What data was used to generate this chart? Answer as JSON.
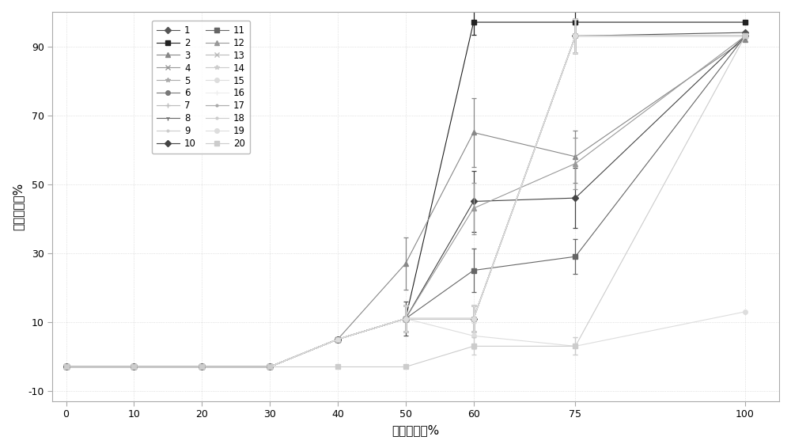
{
  "x_values": [
    0,
    10,
    20,
    30,
    40,
    50,
    60,
    75,
    100
  ],
  "ylabel": "累积回收率%",
  "xlabel": "甲醇的浓度%",
  "xlim": [
    -2,
    105
  ],
  "ylim": [
    -13,
    100
  ],
  "yticks": [
    -10,
    10,
    30,
    50,
    70,
    90
  ],
  "xticks": [
    0,
    10,
    20,
    30,
    40,
    50,
    60,
    75,
    100
  ],
  "series": [
    {
      "label": "1",
      "marker": "D",
      "color": "#555555",
      "ms": 4,
      "lw": 0.8,
      "values": [
        -3,
        -3,
        -3,
        -3,
        5,
        11,
        11,
        93,
        94
      ],
      "eb_idx": [
        5,
        6,
        7
      ],
      "eb_err": [
        2.0,
        1.5,
        2.0
      ]
    },
    {
      "label": "2",
      "marker": "s",
      "color": "#222222",
      "ms": 5,
      "lw": 0.8,
      "values": [
        -3,
        -3,
        -3,
        -3,
        5,
        11,
        97,
        97,
        97
      ],
      "eb_idx": [
        5,
        6,
        7
      ],
      "eb_err": [
        1.5,
        1.5,
        1.5
      ]
    },
    {
      "label": "3",
      "marker": "^",
      "color": "#888888",
      "ms": 4,
      "lw": 0.8,
      "values": [
        -3,
        -3,
        -3,
        -3,
        5,
        27,
        65,
        58,
        92
      ],
      "eb_idx": [
        5,
        6,
        7
      ],
      "eb_err": [
        3.0,
        4.0,
        3.0
      ]
    },
    {
      "label": "4",
      "marker": "x",
      "color": "#999999",
      "ms": 4,
      "lw": 0.8,
      "values": [
        -3,
        -3,
        -3,
        -3,
        5,
        11,
        11,
        93,
        93
      ],
      "eb_idx": [
        5,
        6,
        7
      ],
      "eb_err": [
        1.5,
        1.5,
        2.0
      ]
    },
    {
      "label": "5",
      "marker": "*",
      "color": "#aaaaaa",
      "ms": 4,
      "lw": 0.8,
      "values": [
        -3,
        -3,
        -3,
        -3,
        5,
        11,
        11,
        93,
        93
      ],
      "eb_idx": [
        5,
        6,
        7
      ],
      "eb_err": [
        1.5,
        1.5,
        2.0
      ]
    },
    {
      "label": "6",
      "marker": "o",
      "color": "#777777",
      "ms": 4,
      "lw": 0.8,
      "values": [
        -3,
        -3,
        -3,
        -3,
        5,
        11,
        11,
        93,
        93
      ],
      "eb_idx": [
        5,
        6,
        7
      ],
      "eb_err": [
        1.5,
        1.5,
        2.0
      ]
    },
    {
      "label": "7",
      "marker": "+",
      "color": "#bbbbbb",
      "ms": 4,
      "lw": 0.8,
      "values": [
        -3,
        -3,
        -3,
        -3,
        5,
        11,
        11,
        93,
        93
      ],
      "eb_idx": [
        5,
        6,
        7
      ],
      "eb_err": [
        1.5,
        1.5,
        2.0
      ]
    },
    {
      "label": "8",
      "marker": "1",
      "color": "#666666",
      "ms": 4,
      "lw": 0.8,
      "values": [
        -3,
        -3,
        -3,
        -3,
        5,
        11,
        11,
        93,
        93
      ],
      "eb_idx": [
        5,
        6,
        7
      ],
      "eb_err": [
        1.5,
        1.5,
        2.0
      ]
    },
    {
      "label": "9",
      "marker": ".",
      "color": "#cccccc",
      "ms": 4,
      "lw": 0.8,
      "values": [
        -3,
        -3,
        -3,
        -3,
        5,
        11,
        11,
        93,
        93
      ],
      "eb_idx": [
        5,
        6,
        7
      ],
      "eb_err": [
        1.5,
        1.5,
        2.0
      ]
    },
    {
      "label": "10",
      "marker": "D",
      "color": "#444444",
      "ms": 4,
      "lw": 0.8,
      "values": [
        -3,
        -3,
        -3,
        -3,
        5,
        11,
        45,
        46,
        93
      ],
      "eb_idx": [
        5,
        6,
        7
      ],
      "eb_err": [
        1.5,
        3.5,
        3.5
      ]
    },
    {
      "label": "11",
      "marker": "s",
      "color": "#666666",
      "ms": 4,
      "lw": 0.8,
      "values": [
        -3,
        -3,
        -3,
        -3,
        5,
        11,
        25,
        29,
        93
      ],
      "eb_idx": [
        5,
        6,
        7
      ],
      "eb_err": [
        1.5,
        2.5,
        2.0
      ]
    },
    {
      "label": "12",
      "marker": "^",
      "color": "#999999",
      "ms": 4,
      "lw": 0.8,
      "values": [
        -3,
        -3,
        -3,
        -3,
        5,
        11,
        43,
        56,
        93
      ],
      "eb_idx": [
        5,
        6,
        7
      ],
      "eb_err": [
        1.5,
        3.0,
        3.0
      ]
    },
    {
      "label": "13",
      "marker": "x",
      "color": "#bbbbbb",
      "ms": 4,
      "lw": 0.8,
      "values": [
        -3,
        -3,
        -3,
        -3,
        5,
        11,
        11,
        93,
        93
      ],
      "eb_idx": [
        5,
        6,
        7
      ],
      "eb_err": [
        1.5,
        1.5,
        2.0
      ]
    },
    {
      "label": "14",
      "marker": "*",
      "color": "#cccccc",
      "ms": 4,
      "lw": 0.8,
      "values": [
        -3,
        -3,
        -3,
        -3,
        5,
        11,
        11,
        93,
        93
      ],
      "eb_idx": [
        5,
        6,
        7
      ],
      "eb_err": [
        1.5,
        1.5,
        2.0
      ]
    },
    {
      "label": "15",
      "marker": "o",
      "color": "#dddddd",
      "ms": 4,
      "lw": 0.8,
      "values": [
        -3,
        -3,
        -3,
        -3,
        5,
        11,
        6,
        3,
        13
      ],
      "eb_idx": [
        5,
        6,
        7
      ],
      "eb_err": [
        1.5,
        1.5,
        1.0
      ]
    },
    {
      "label": "16",
      "marker": "+",
      "color": "#eeeeee",
      "ms": 4,
      "lw": 0.8,
      "values": [
        -3,
        -3,
        -3,
        -3,
        5,
        11,
        11,
        93,
        93
      ],
      "eb_idx": [
        5,
        6,
        7
      ],
      "eb_err": [
        1.5,
        1.5,
        2.0
      ]
    },
    {
      "label": "17",
      "marker": ".",
      "color": "#aaaaaa",
      "ms": 4,
      "lw": 0.8,
      "values": [
        -3,
        -3,
        -3,
        -3,
        5,
        11,
        11,
        93,
        93
      ],
      "eb_idx": [
        5,
        6,
        7
      ],
      "eb_err": [
        1.5,
        1.5,
        2.0
      ]
    },
    {
      "label": "18",
      "marker": ".",
      "color": "#cccccc",
      "ms": 4,
      "lw": 0.8,
      "values": [
        -3,
        -3,
        -3,
        -3,
        5,
        11,
        11,
        93,
        93
      ],
      "eb_idx": [
        5,
        6,
        7
      ],
      "eb_err": [
        1.5,
        1.5,
        2.0
      ]
    },
    {
      "label": "19",
      "marker": "o",
      "color": "#dddddd",
      "ms": 4,
      "lw": 0.8,
      "values": [
        -3,
        -3,
        -3,
        -3,
        5,
        11,
        11,
        93,
        93
      ],
      "eb_idx": [
        5,
        6,
        7
      ],
      "eb_err": [
        1.5,
        1.5,
        2.0
      ]
    },
    {
      "label": "20",
      "marker": "s",
      "color": "#cccccc",
      "ms": 4,
      "lw": 0.8,
      "values": [
        -3,
        -3,
        -3,
        -3,
        -3,
        -3,
        3,
        3,
        93
      ],
      "eb_idx": [
        6,
        7
      ],
      "eb_err": [
        1.0,
        1.0
      ]
    }
  ]
}
